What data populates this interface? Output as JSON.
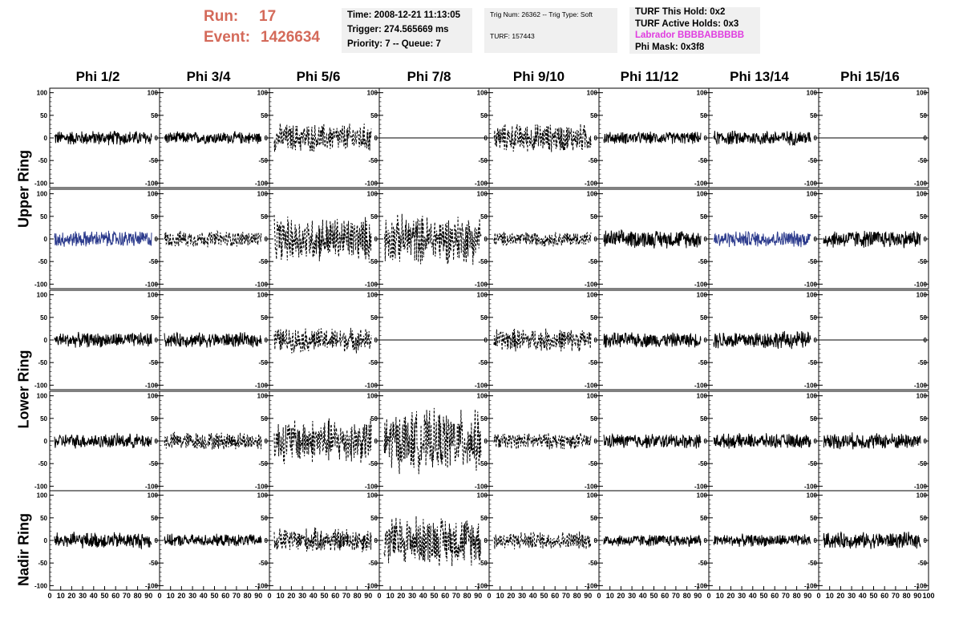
{
  "header": {
    "run_label": "Run:",
    "run_value": "17",
    "event_label": "Event:",
    "event_value": "1426634",
    "time": "Time: 2008-12-21 11:13:05",
    "trigger": "Trigger: 274.565669 ms",
    "priority": "Priority: 7 -- Queue: 7",
    "trig_num": "Trig Num: 26362 -- Trig Type: Soft",
    "turf": "TURF: 157443",
    "turf_hold": "TURF This Hold: 0x2",
    "turf_active": "TURF Active Holds: 0x3",
    "labrador": "Labrador BBBBABBBBB",
    "phi_mask": "Phi Mask: 0x3f8"
  },
  "columns": [
    "Phi 1/2",
    "Phi 3/4",
    "Phi 5/6",
    "Phi 7/8",
    "Phi 9/10",
    "Phi 11/12",
    "Phi 13/14",
    "Phi 15/16"
  ],
  "row_labels": [
    "Upper Ring",
    "Lower Ring",
    "Nadir Ring"
  ],
  "colors": {
    "run_text": "#d46a5a",
    "magenta": "#e03ce0",
    "blue_trace": "#2b3a8c",
    "black": "#000000"
  },
  "chart_data": {
    "type": "line",
    "title": "",
    "xlabel": "",
    "ylabel": "",
    "xlim": [
      0,
      100
    ],
    "ylim": [
      -110,
      110
    ],
    "x_ticks": [
      "0",
      "10",
      "20",
      "30",
      "40",
      "50",
      "60",
      "70",
      "80",
      "90",
      "100"
    ],
    "y_ticks": [
      "100",
      "50",
      "0",
      "-50",
      "-100"
    ],
    "grid": false,
    "rows": [
      {
        "group": "Upper Ring",
        "amplitudes": [
          18,
          15,
          35,
          0,
          35,
          15,
          18,
          0
        ],
        "styles": [
          "solid",
          "solid",
          "dashed",
          "flat",
          "dashed",
          "solid",
          "solid",
          "flat"
        ],
        "colors": [
          "black",
          "black",
          "black",
          "black",
          "black",
          "black",
          "black",
          "black"
        ]
      },
      {
        "group": "Upper Ring",
        "amplitudes": [
          20,
          20,
          55,
          60,
          18,
          22,
          20,
          22
        ],
        "styles": [
          "solid",
          "dashed",
          "dashed",
          "dashed",
          "dashed",
          "solid",
          "solid",
          "solid"
        ],
        "colors": [
          "blue",
          "black",
          "black",
          "black",
          "black",
          "black",
          "blue",
          "black"
        ]
      },
      {
        "group": "Lower Ring",
        "amplitudes": [
          18,
          18,
          30,
          0,
          28,
          18,
          22,
          0
        ],
        "styles": [
          "solid",
          "solid",
          "dashed",
          "flat",
          "dashed",
          "solid",
          "solid",
          "flat"
        ],
        "colors": [
          "black",
          "black",
          "black",
          "black",
          "black",
          "black",
          "black",
          "black"
        ]
      },
      {
        "group": "Lower Ring",
        "amplitudes": [
          18,
          22,
          55,
          75,
          20,
          18,
          18,
          20
        ],
        "styles": [
          "solid",
          "dashed",
          "dashed",
          "dashed",
          "dashed",
          "solid",
          "solid",
          "solid"
        ],
        "colors": [
          "black",
          "black",
          "black",
          "black",
          "black",
          "black",
          "black",
          "black"
        ]
      },
      {
        "group": "Nadir Ring",
        "amplitudes": [
          20,
          15,
          30,
          60,
          22,
          15,
          15,
          20
        ],
        "styles": [
          "solid",
          "solid",
          "dashed",
          "dashed",
          "dashed",
          "solid",
          "solid",
          "solid"
        ],
        "colors": [
          "black",
          "black",
          "black",
          "black",
          "black",
          "black",
          "black",
          "black"
        ]
      }
    ]
  }
}
